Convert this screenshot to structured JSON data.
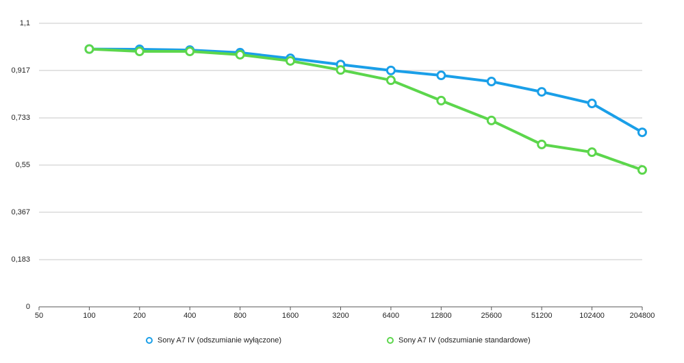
{
  "chart_data": {
    "type": "line",
    "categories": [
      "50",
      "100",
      "200",
      "400",
      "800",
      "1600",
      "3200",
      "6400",
      "12800",
      "25600",
      "51200",
      "102400",
      "204800"
    ],
    "series": [
      {
        "name": "Sony A7 IV (odszumianie wyłączone)",
        "color": "#1a9fe8",
        "values": [
          null,
          1.0,
          0.999,
          0.996,
          0.986,
          0.964,
          0.94,
          0.917,
          0.898,
          0.874,
          0.834,
          0.789,
          0.677
        ]
      },
      {
        "name": "Sony A7 IV (odszumianie standardowe)",
        "color": "#5cd64c",
        "values": [
          null,
          1.0,
          0.991,
          0.991,
          0.978,
          0.954,
          0.919,
          0.879,
          0.8,
          0.723,
          0.63,
          0.6,
          0.531
        ]
      }
    ],
    "ylim": [
      0,
      1.1
    ],
    "yticks": [
      0,
      {
        "value": 0.183,
        "label": "0,183"
      },
      {
        "value": 0.367,
        "label": "0,367"
      },
      {
        "value": 0.55,
        "label": "0,55"
      },
      {
        "value": 0.733,
        "label": "0,733"
      },
      {
        "value": 0.917,
        "label": "0,917"
      },
      {
        "value": 1.1,
        "label": "1,1"
      }
    ],
    "grid": true,
    "legend": "bottom"
  }
}
